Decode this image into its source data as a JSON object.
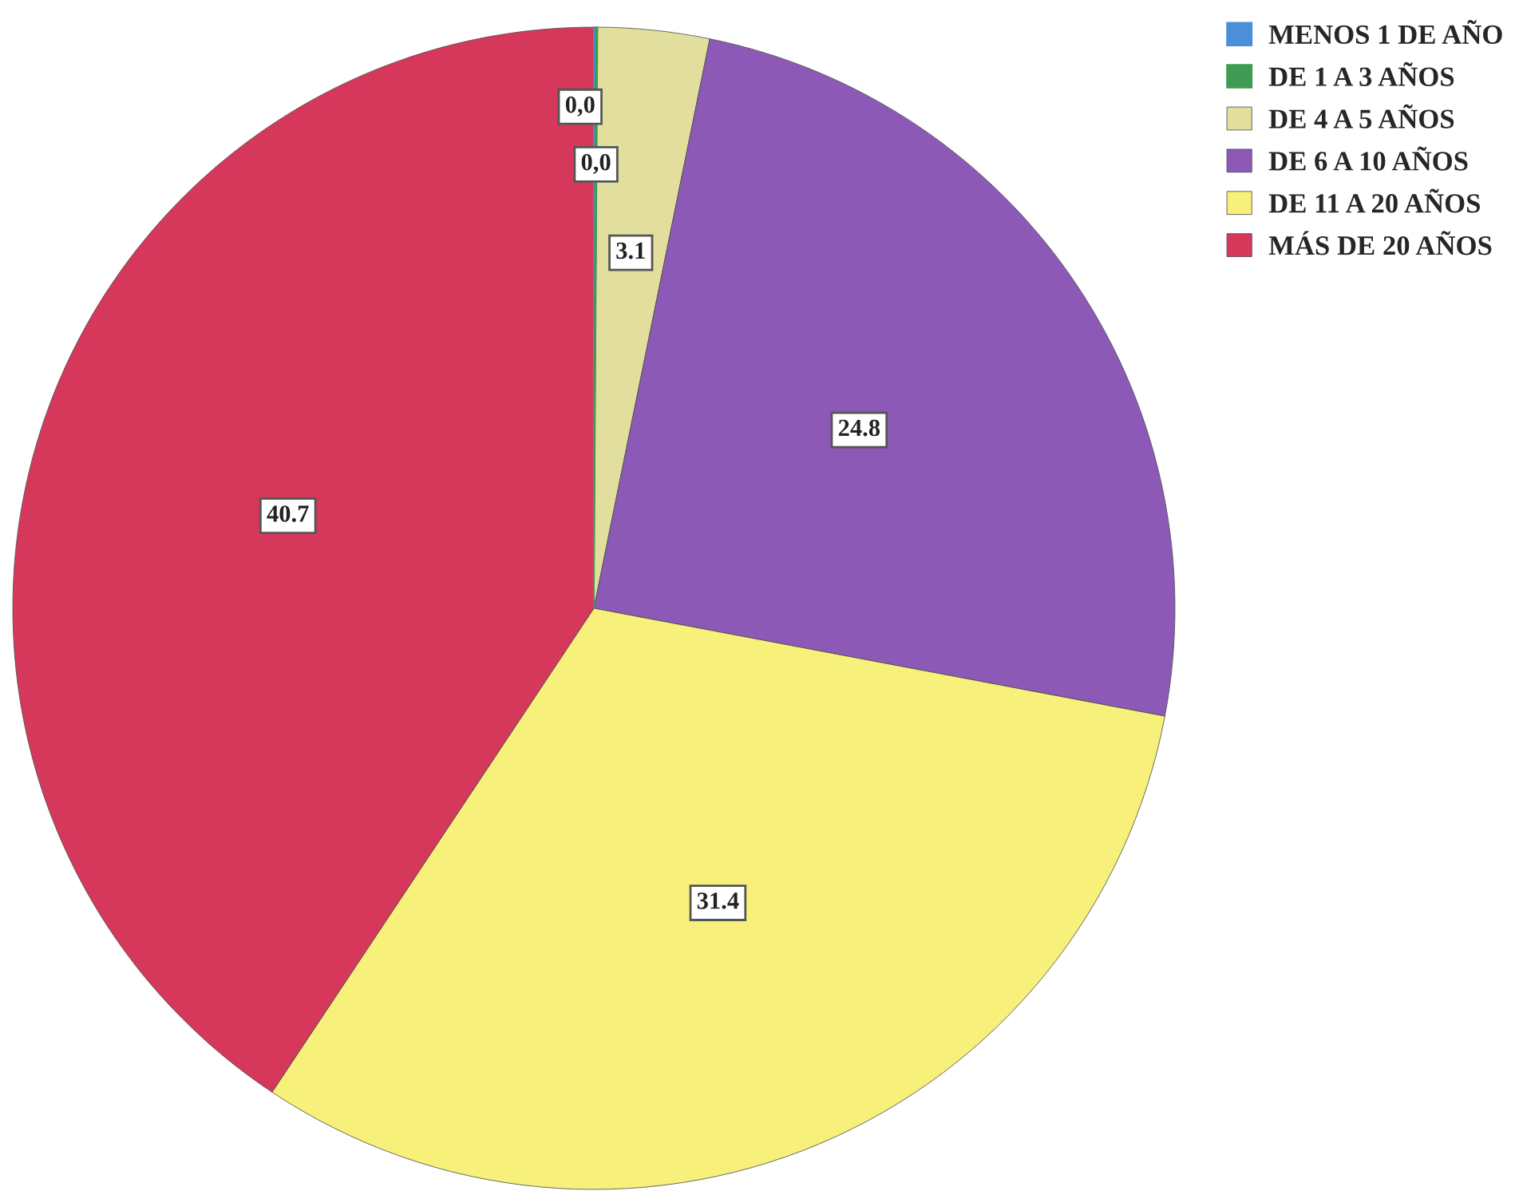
{
  "chart_data": {
    "type": "pie",
    "categories": [
      "MENOS 1 DE AÑO",
      "DE 1 A 3 AÑOS",
      "DE 4 A 5 AÑOS",
      "DE 6 A 10 AÑOS",
      "DE 11 A 20 AÑOS",
      "MÁS DE 20 AÑOS"
    ],
    "values": [
      0.05,
      0.05,
      3.1,
      24.8,
      31.4,
      40.7
    ],
    "value_labels": [
      "0,0",
      "0,0",
      "3.1",
      "24.8",
      "31.4",
      "40.7"
    ],
    "colors": [
      "#4a8fd8",
      "#3f9a52",
      "#e2df9e",
      "#8c5ab6",
      "#f7f07a",
      "#d6385c"
    ],
    "legend": "top right"
  }
}
